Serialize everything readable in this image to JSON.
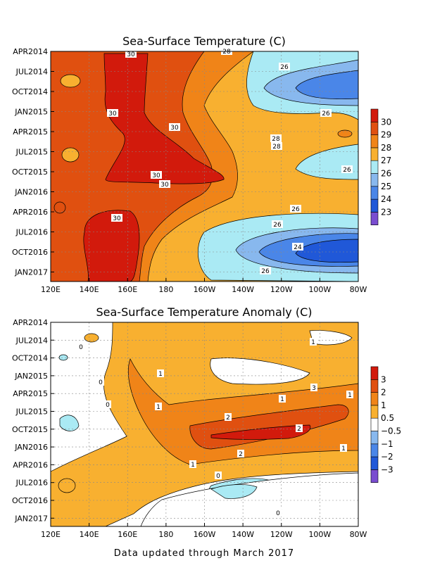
{
  "footer": "Data updated through March 2017",
  "colors": {
    "palette": [
      "#7a4dd0",
      "#2058d8",
      "#4a86e8",
      "#88b8ee",
      "#aaeaf4",
      "#ffffff",
      "#f8b030",
      "#f08418",
      "#e05010",
      "#d21a0c"
    ]
  },
  "chart_data": [
    {
      "type": "heatmap",
      "title": "Sea-Surface Temperature (C)",
      "x_ticks": [
        "120E",
        "140E",
        "160E",
        "180",
        "160W",
        "140W",
        "120W",
        "100W",
        "80W"
      ],
      "y_ticks": [
        "APR2014",
        "JUL2014",
        "OCT2014",
        "JAN2015",
        "APR2015",
        "JUL2015",
        "OCT2015",
        "JAN2016",
        "APR2016",
        "JUL2016",
        "OCT2016",
        "JAN2017"
      ],
      "colorbar_levels": [
        "23",
        "24",
        "25",
        "26",
        "27",
        "28",
        "29",
        "30"
      ],
      "contour_labels": [
        "30",
        "30",
        "30",
        "30",
        "30",
        "30",
        "28",
        "28",
        "28",
        "26",
        "26",
        "26",
        "26",
        "26",
        "26",
        "24"
      ]
    },
    {
      "type": "heatmap",
      "title": "Sea-Surface Temperature Anomaly (C)",
      "x_ticks": [
        "120E",
        "140E",
        "160E",
        "180",
        "160W",
        "140W",
        "120W",
        "100W",
        "80W"
      ],
      "y_ticks": [
        "APR2014",
        "JUL2014",
        "OCT2014",
        "JAN2015",
        "APR2015",
        "JUL2015",
        "OCT2015",
        "JAN2016",
        "APR2016",
        "JUL2016",
        "OCT2016",
        "JAN2017"
      ],
      "colorbar_levels": [
        "−3",
        "−2",
        "−1",
        "−0.5",
        "0.5",
        "1",
        "2",
        "3"
      ],
      "contour_labels": [
        "0",
        "0",
        "0",
        "0",
        "0",
        "1",
        "1",
        "1",
        "1",
        "1",
        "1",
        "1",
        "2",
        "2",
        "2",
        "3"
      ]
    }
  ]
}
